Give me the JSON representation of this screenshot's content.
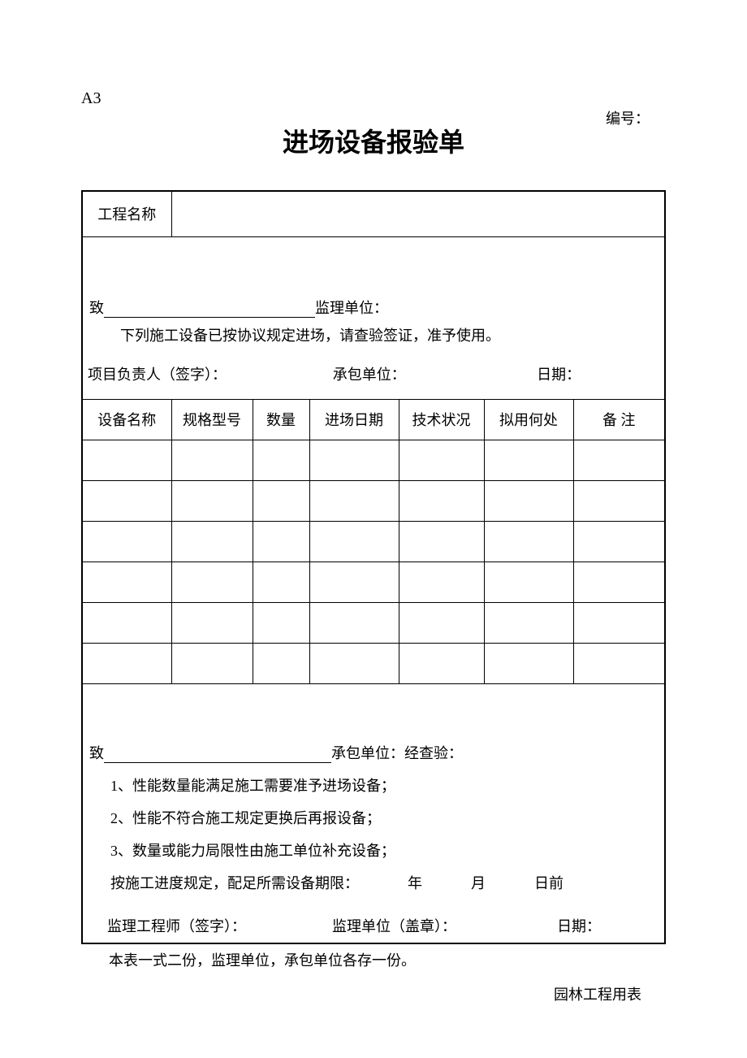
{
  "header": {
    "code": "A3",
    "serial_label": "编号：",
    "title": "进场设备报验单"
  },
  "row_project": {
    "label": "工程名称"
  },
  "notice": {
    "to_prefix": "致",
    "to_suffix": "监理单位：",
    "body": "下列施工设备已按协议规定进场，请查验签证，准予使用。",
    "sig1": "项目负责人（签字）：",
    "sig2": "承包单位：",
    "sig3": "日期："
  },
  "equip_table": {
    "columns": [
      "设备名称",
      "规格型号",
      "数量",
      "进场日期",
      "技术状况",
      "拟用何处",
      "备  注"
    ],
    "row_count": 6
  },
  "verify": {
    "to_prefix": "致",
    "to_suffix": "承包单位：经查验：",
    "item1": "1、性能数量能满足施工需要准予进场设备；",
    "item2": "2、性能不符合施工规定更换后再报设备；",
    "item3": "3、数量或能力局限性由施工单位补充设备；",
    "deadline_prefix": "按施工进度规定，配足所需设备期限：",
    "year": "年",
    "month": "月",
    "day_suffix": "日前",
    "sig1": "监理工程师（签字）：",
    "sig2": "监理单位（盖章）：",
    "sig3": "日期："
  },
  "footer": {
    "note": "本表一式二份，监理单位，承包单位各存一份。",
    "right": "园林工程用表"
  },
  "style": {
    "page_bg": "#ffffff",
    "text_color": "#000000",
    "border_color": "#000000",
    "title_fontsize": 32,
    "body_fontsize": 18
  }
}
